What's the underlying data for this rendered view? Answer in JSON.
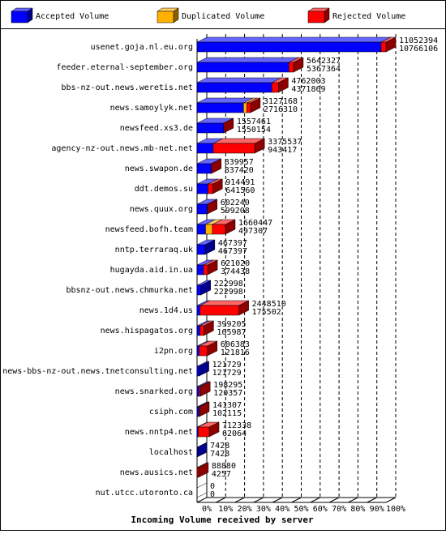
{
  "chart_data": {
    "type": "bar3d-stacked-horizontal",
    "title": "Incoming Volume received by server",
    "categories": [
      "usenet.goja.nl.eu.org",
      "feeder.eternal-september.org",
      "bbs-nz-out.news.weretis.net",
      "news.samoylyk.net",
      "newsfeed.xs3.de",
      "agency-nz-out.news.mb-net.net",
      "news.swapon.de",
      "ddt.demos.su",
      "news.quux.org",
      "newsfeed.bofh.team",
      "nntp.terraraq.uk",
      "hugayda.aid.in.ua",
      "bbsnz-out.news.chmurka.net",
      "news.1d4.us",
      "news.hispagatos.org",
      "i2pn.org",
      "news-bbs-nz-out.news.tnetconsulting.net",
      "news.snarked.org",
      "csiph.com",
      "news.nntp4.net",
      "localhost",
      "news.ausics.net",
      "nut.utcc.utoronto.ca"
    ],
    "totals": [
      11052394,
      5642327,
      4762003,
      3127168,
      1557461,
      3375537,
      839957,
      914491,
      602240,
      1660447,
      467397,
      621020,
      222998,
      2448510,
      399205,
      606383,
      121729,
      198295,
      141307,
      712338,
      7428,
      88880,
      0
    ],
    "series": [
      {
        "name": "Accepted Volume",
        "color": "#0000ff",
        "values": [
          10766106,
          5367364,
          4371869,
          2716310,
          1550154,
          943417,
          837420,
          641560,
          599208,
          497307,
          467397,
          374438,
          222998,
          175502,
          165987,
          121816,
          121729,
          120357,
          102115,
          62064,
          7428,
          4257,
          0
        ]
      },
      {
        "name": "Duplicated Volume",
        "color": "#ffb000",
        "values": [
          0,
          0,
          0,
          200000,
          0,
          0,
          0,
          0,
          0,
          400000,
          0,
          0,
          0,
          0,
          0,
          0,
          0,
          0,
          0,
          0,
          0,
          0,
          0
        ]
      },
      {
        "name": "Rejected Volume",
        "color": "#ff0000",
        "values": [
          286288,
          274963,
          390134,
          210858,
          7307,
          2432120,
          2537,
          272931,
          3032,
          763140,
          0,
          246582,
          0,
          2273008,
          233218,
          484567,
          0,
          77938,
          39192,
          650274,
          0,
          84623,
          0
        ]
      }
    ],
    "xlim": [
      0,
      11052394
    ],
    "xticks": [
      {
        "value": 0,
        "label": "0%"
      },
      {
        "value": 1105239.4,
        "label": "10%"
      },
      {
        "value": 2210478.8,
        "label": "20%"
      },
      {
        "value": 3315718.2,
        "label": "30%"
      },
      {
        "value": 4420957.6,
        "label": "40%"
      },
      {
        "value": 5526197,
        "label": "50%"
      },
      {
        "value": 6631436.4,
        "label": "60%"
      },
      {
        "value": 7736675.8,
        "label": "70%"
      },
      {
        "value": 8841915.2,
        "label": "80%"
      },
      {
        "value": 9947154.6,
        "label": "90%"
      },
      {
        "value": 11052394,
        "label": "100%"
      }
    ],
    "grid": true
  }
}
